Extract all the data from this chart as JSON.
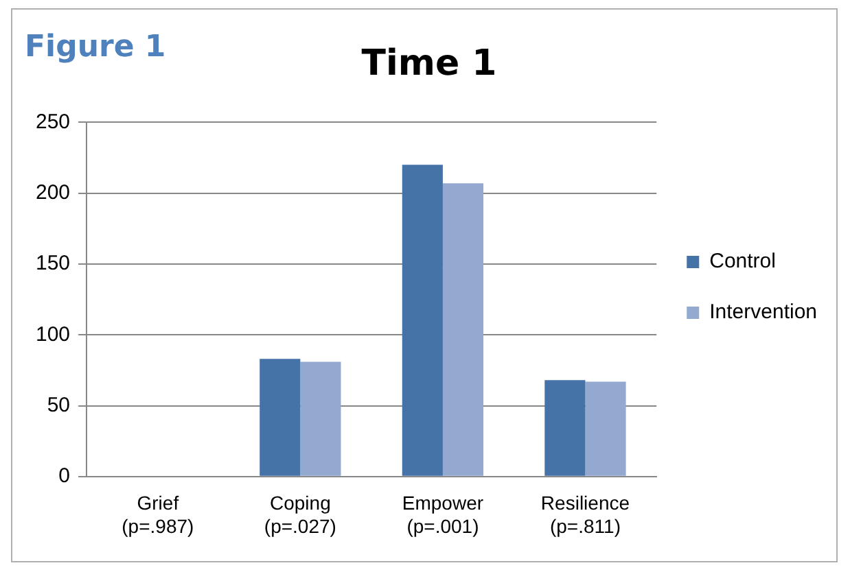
{
  "chart_data": {
    "type": "bar",
    "title": "Time 1",
    "categories": [
      "Grief\n(p=.987)",
      "Coping\n(p=.027)",
      "Empower\n(p=.001)",
      "Resilience\n(p=.811)"
    ],
    "series": [
      {
        "name": "Control",
        "color": "#4572a7",
        "values": [
          null,
          83,
          220,
          68
        ]
      },
      {
        "name": "Intervention",
        "color": "#94a9d0",
        "values": [
          null,
          81,
          207,
          67
        ]
      }
    ],
    "ylim": [
      0,
      250
    ],
    "yticks": [
      0,
      50,
      100,
      150,
      200,
      250
    ],
    "grid": "y",
    "legend": "right",
    "annotations": [
      "Figure 1"
    ]
  }
}
